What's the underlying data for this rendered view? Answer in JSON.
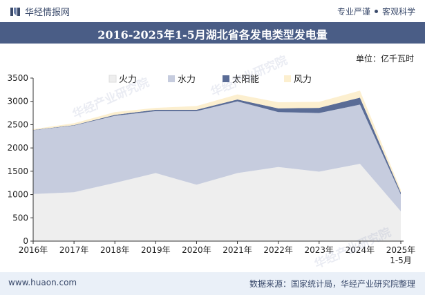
{
  "header": {
    "brand": "华经情报网",
    "slogan_left": "专业严谨",
    "slogan_right": "客观科学"
  },
  "title": "2016-2025年1-5月湖北省各发电类型发电量",
  "unit": "单位：亿千瓦时",
  "watermark": "华经产业研究院",
  "footer": {
    "website": "www.huaon.com",
    "source": "数据来源：国家统计局，华经产业研究院整理"
  },
  "colors": {
    "title_bg": "#4a5d86",
    "footer_bg": "#eaf0f8",
    "fire": "#eeeeee",
    "hydro": "#c6ccde",
    "solar": "#5a6c96",
    "wind": "#fcefcf"
  },
  "chart_data": {
    "type": "area",
    "stacked": true,
    "categories": [
      "2016年",
      "2017年",
      "2018年",
      "2019年",
      "2020年",
      "2021年",
      "2022年",
      "2023年",
      "2024年",
      "2025年\n1-5月"
    ],
    "ylim": [
      0,
      3500
    ],
    "yticks": [
      0,
      500,
      1000,
      1500,
      2000,
      2500,
      3000,
      3500
    ],
    "legend_position": "top-center",
    "grid": false,
    "series": [
      {
        "name": "火力",
        "color": "#eeeeee",
        "values": [
          1010,
          1050,
          1250,
          1460,
          1210,
          1460,
          1590,
          1490,
          1660,
          640
        ]
      },
      {
        "name": "水力",
        "color": "#c6ccde",
        "values": [
          1370,
          1430,
          1440,
          1330,
          1580,
          1540,
          1180,
          1260,
          1270,
          360
        ]
      },
      {
        "name": "太阳能",
        "color": "#5a6c96",
        "values": [
          5,
          10,
          20,
          30,
          30,
          40,
          80,
          110,
          150,
          40
        ]
      },
      {
        "name": "风力",
        "color": "#fcefcf",
        "values": [
          20,
          40,
          60,
          40,
          80,
          110,
          130,
          130,
          150,
          60
        ]
      }
    ]
  }
}
